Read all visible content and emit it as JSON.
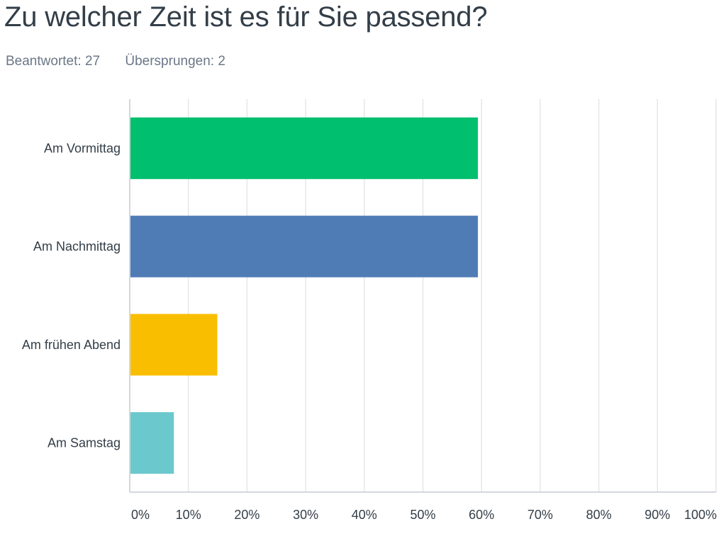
{
  "question": {
    "title": "Zu welcher Zeit ist es für Sie passend?",
    "answered": "Beantwortet: 27",
    "skipped": "Übersprungen: 2"
  },
  "chart_data": {
    "type": "bar",
    "orientation": "horizontal",
    "categories": [
      "Am Vormittag",
      "Am Nachmittag",
      "Am frühen Abend",
      "Am Samstag"
    ],
    "values": [
      59.26,
      59.26,
      14.81,
      7.41
    ],
    "colors": [
      "#00bf6f",
      "#507cb6",
      "#f9be00",
      "#6bc8cd"
    ],
    "xlim": [
      0,
      100
    ],
    "x_ticks": [
      "0%",
      "10%",
      "20%",
      "30%",
      "40%",
      "50%",
      "60%",
      "70%",
      "80%",
      "90%",
      "100%"
    ],
    "grid": true,
    "xlabel": "",
    "ylabel": ""
  }
}
